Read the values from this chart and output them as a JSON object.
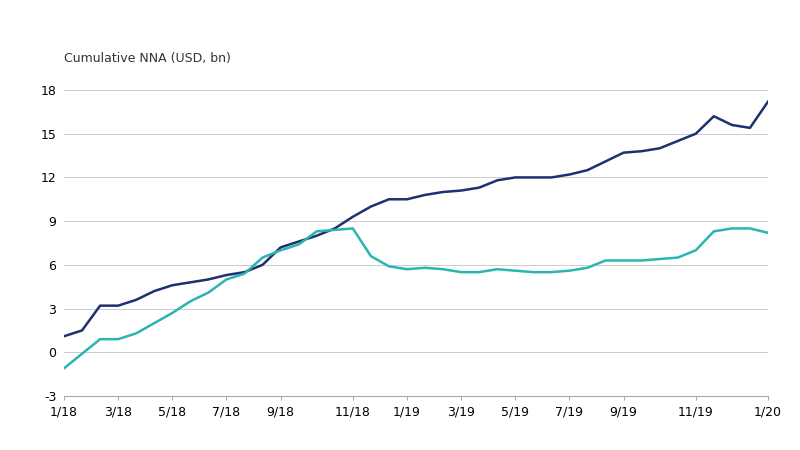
{
  "ylabel": "Cumulative NNA (USD, bn)",
  "background_color": "#ffffff",
  "grid_color": "#cccccc",
  "synthetic_color": "#1f3070",
  "physical_color": "#2ab5b0",
  "ylim": [
    -3,
    18
  ],
  "yticks": [
    -3,
    0,
    3,
    6,
    9,
    12,
    15,
    18
  ],
  "x_tick_labels": [
    "1/18",
    "3/18",
    "5/18",
    "7/18",
    "9/18",
    "11/18",
    "1/19",
    "3/19",
    "5/19",
    "7/19",
    "9/19",
    "11/19",
    "1/20"
  ],
  "synthetic_data": [
    [
      0,
      1.1
    ],
    [
      1,
      1.5
    ],
    [
      2,
      3.2
    ],
    [
      3,
      3.2
    ],
    [
      4,
      3.6
    ],
    [
      5,
      4.2
    ],
    [
      6,
      4.6
    ],
    [
      7,
      4.8
    ],
    [
      8,
      5.0
    ],
    [
      9,
      5.3
    ],
    [
      10,
      5.5
    ],
    [
      11,
      6.0
    ],
    [
      12,
      7.2
    ],
    [
      13,
      7.6
    ],
    [
      14,
      8.0
    ],
    [
      15,
      8.5
    ],
    [
      16,
      9.3
    ],
    [
      17,
      10.0
    ],
    [
      18,
      10.5
    ],
    [
      19,
      10.5
    ],
    [
      20,
      10.8
    ],
    [
      21,
      11.0
    ],
    [
      22,
      11.1
    ],
    [
      23,
      11.3
    ],
    [
      24,
      11.8
    ],
    [
      25,
      12.0
    ],
    [
      26,
      12.0
    ],
    [
      27,
      12.0
    ],
    [
      28,
      12.2
    ],
    [
      29,
      12.5
    ],
    [
      30,
      13.1
    ],
    [
      31,
      13.7
    ],
    [
      32,
      13.8
    ],
    [
      33,
      14.0
    ],
    [
      34,
      14.5
    ],
    [
      35,
      15.0
    ],
    [
      36,
      16.2
    ],
    [
      37,
      15.6
    ],
    [
      38,
      15.4
    ],
    [
      39,
      17.2
    ]
  ],
  "physical_data": [
    [
      0,
      -1.1
    ],
    [
      2,
      0.9
    ],
    [
      3,
      0.9
    ],
    [
      4,
      1.3
    ],
    [
      5,
      2.0
    ],
    [
      6,
      2.7
    ],
    [
      7,
      3.5
    ],
    [
      8,
      4.1
    ],
    [
      9,
      5.0
    ],
    [
      10,
      5.4
    ],
    [
      11,
      6.5
    ],
    [
      12,
      7.0
    ],
    [
      13,
      7.4
    ],
    [
      14,
      8.3
    ],
    [
      15,
      8.4
    ],
    [
      16,
      8.5
    ],
    [
      17,
      6.6
    ],
    [
      18,
      5.9
    ],
    [
      19,
      5.7
    ],
    [
      20,
      5.8
    ],
    [
      21,
      5.7
    ],
    [
      22,
      5.5
    ],
    [
      23,
      5.5
    ],
    [
      24,
      5.7
    ],
    [
      25,
      5.6
    ],
    [
      26,
      5.5
    ],
    [
      27,
      5.5
    ],
    [
      28,
      5.6
    ],
    [
      29,
      5.8
    ],
    [
      30,
      6.3
    ],
    [
      31,
      6.3
    ],
    [
      32,
      6.3
    ],
    [
      33,
      6.4
    ],
    [
      34,
      6.5
    ],
    [
      35,
      7.0
    ],
    [
      36,
      8.3
    ],
    [
      37,
      8.5
    ],
    [
      38,
      8.5
    ],
    [
      39,
      8.2
    ]
  ]
}
